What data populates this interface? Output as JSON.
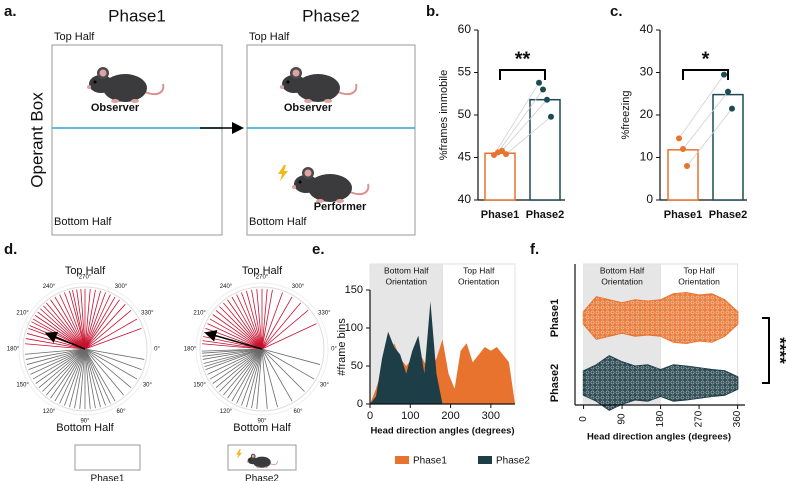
{
  "figure": {
    "panel_labels": [
      "a.",
      "b.",
      "c.",
      "d.",
      "e.",
      "f."
    ]
  },
  "diagram": {
    "phase_titles": [
      "Phase1",
      "Phase2"
    ],
    "box_label": "Operant Box",
    "top_half": "Top Half",
    "bottom_half": "Bottom Half",
    "observer": "Observer",
    "performer": "Performer"
  },
  "chart_data": [
    {
      "type": "bar",
      "ylabel": "%frames immobile",
      "categories": [
        "Phase1",
        "Phase2"
      ],
      "values": [
        45.5,
        51.8
      ],
      "colors": [
        "#e8732e",
        "#1d4a55"
      ],
      "points": [
        [
          45.3,
          45.6,
          45.8,
          45.4
        ],
        [
          53.8,
          53.0,
          51.8,
          49.8
        ]
      ],
      "ylim": [
        40,
        60
      ],
      "yticks": [
        40,
        45,
        50,
        55,
        60
      ],
      "significance": "**"
    },
    {
      "type": "bar",
      "ylabel": "%freezing",
      "categories": [
        "Phase1",
        "Phase2"
      ],
      "values": [
        11.8,
        24.8
      ],
      "colors": [
        "#e8732e",
        "#1d4a55"
      ],
      "points": [
        [
          14.5,
          12.0,
          8.0
        ],
        [
          29.5,
          25.5,
          21.5
        ]
      ],
      "ylim": [
        0,
        40
      ],
      "yticks": [
        0,
        10,
        20,
        30,
        40
      ],
      "significance": "*"
    },
    {
      "type": "polar",
      "title": "Top Half",
      "bottom_label": "Bottom Half",
      "name": "Phase1",
      "angle_ticks": [
        {
          "value": 0,
          "label": "0°"
        },
        {
          "value": 30,
          "label": "30°"
        },
        {
          "value": 60,
          "label": "60°"
        },
        {
          "value": 90,
          "label": "90°"
        },
        {
          "value": 120,
          "label": "120°"
        },
        {
          "value": 150,
          "label": "150°"
        },
        {
          "value": 180,
          "label": "180°"
        },
        {
          "value": 210,
          "label": "210°"
        },
        {
          "value": 240,
          "label": "240°"
        },
        {
          "value": 270,
          "label": "270°"
        },
        {
          "value": 300,
          "label": "300°"
        },
        {
          "value": 330,
          "label": "330°"
        }
      ],
      "series": [
        {
          "color": "#c8102e",
          "values": [
            185,
            190,
            195,
            200,
            203,
            207,
            210,
            214,
            218,
            222,
            226,
            230,
            235,
            240,
            245,
            250,
            255,
            258,
            262,
            266,
            270,
            275,
            280,
            285,
            290,
            295,
            300,
            305,
            312,
            320,
            330,
            340
          ]
        },
        {
          "color": "#6b6b6b",
          "values": [
            10,
            20,
            30,
            40,
            50,
            60,
            65,
            70,
            75,
            80,
            85,
            90,
            95,
            100,
            105,
            110,
            115,
            120,
            125,
            130,
            135,
            140,
            145,
            150,
            155,
            160,
            165,
            170,
            175
          ]
        }
      ],
      "arrow": {
        "angle": 202,
        "length": 0.65
      }
    },
    {
      "type": "polar",
      "title": "Top Half",
      "bottom_label": "Bottom Half",
      "name": "Phase2",
      "angle_ticks": [
        {
          "value": 0,
          "label": "0°"
        },
        {
          "value": 30,
          "label": "30°"
        },
        {
          "value": 60,
          "label": "60°"
        },
        {
          "value": 90,
          "label": "90°"
        },
        {
          "value": 120,
          "label": "120°"
        },
        {
          "value": 150,
          "label": "150°"
        },
        {
          "value": 180,
          "label": "180°"
        },
        {
          "value": 210,
          "label": "210°"
        },
        {
          "value": 240,
          "label": "240°"
        },
        {
          "value": 270,
          "label": "270°"
        },
        {
          "value": 300,
          "label": "300°"
        },
        {
          "value": 330,
          "label": "330°"
        }
      ],
      "series": [
        {
          "color": "#c8102e",
          "values": [
            185,
            188,
            192,
            196,
            200,
            205,
            210,
            215,
            220,
            225,
            230,
            235,
            240,
            245,
            250,
            255,
            260,
            265,
            270,
            275,
            280,
            290,
            300,
            310,
            320,
            335
          ]
        },
        {
          "color": "#6b6b6b",
          "values": [
            15,
            30,
            45,
            60,
            75,
            85,
            95,
            100,
            105,
            110,
            115,
            120,
            125,
            130,
            135,
            140,
            145,
            150,
            155,
            160,
            163,
            166,
            170,
            173,
            176,
            178
          ]
        }
      ],
      "arrow": {
        "angle": 196,
        "length": 0.92
      }
    },
    {
      "type": "area",
      "xlabel": "Head direction angles (degrees)",
      "ylabel": "#frame bins",
      "x": [
        0,
        15,
        30,
        45,
        60,
        75,
        90,
        105,
        120,
        135,
        150,
        165,
        180,
        195,
        210,
        225,
        240,
        255,
        270,
        285,
        300,
        315,
        330,
        345,
        360
      ],
      "series": [
        {
          "name": "Phase1",
          "color": "#e8732e",
          "values": [
            0,
            20,
            45,
            65,
            80,
            60,
            50,
            60,
            70,
            55,
            45,
            60,
            85,
            40,
            20,
            70,
            80,
            55,
            65,
            75,
            70,
            75,
            65,
            55,
            0
          ]
        },
        {
          "name": "Phase2",
          "color": "#1d3d47",
          "values": [
            0,
            10,
            60,
            95,
            75,
            65,
            40,
            70,
            90,
            40,
            135,
            40,
            0,
            0,
            0,
            0,
            0,
            0,
            0,
            0,
            0,
            0,
            0,
            0,
            0
          ]
        }
      ],
      "xlim": [
        0,
        360
      ],
      "xticks": [
        0,
        100,
        200,
        300
      ],
      "ylim": [
        0,
        150
      ],
      "yticks": [
        0,
        50,
        100,
        150
      ],
      "regions": [
        {
          "label_lines": [
            "Bottom Half",
            "Orientation"
          ],
          "range": [
            0,
            180
          ],
          "color": "#e6e6e6"
        },
        {
          "label_lines": [
            "Top Half",
            "Orientation"
          ],
          "range": [
            180,
            360
          ],
          "color": "#ffffff"
        }
      ]
    },
    {
      "type": "violin",
      "xlabel": "Head direction angles (degrees)",
      "categories": [
        "Phase1",
        "Phase2"
      ],
      "x": [
        0,
        30,
        60,
        90,
        120,
        150,
        180,
        210,
        240,
        270,
        300,
        330,
        360
      ],
      "series": [
        {
          "color": "#e8732e",
          "values": [
            0.1,
            0.35,
            0.3,
            0.25,
            0.3,
            0.28,
            0.3,
            0.4,
            0.42,
            0.38,
            0.4,
            0.3,
            0.1
          ]
        },
        {
          "color": "#1d3d47",
          "values": [
            0.2,
            0.3,
            0.45,
            0.35,
            0.28,
            0.3,
            0.22,
            0.3,
            0.28,
            0.25,
            0.22,
            0.2,
            0.1
          ]
        }
      ],
      "xlim": [
        -20,
        410
      ],
      "xticks": [
        0,
        90,
        180,
        270,
        360
      ],
      "significance": "****",
      "regions": [
        {
          "label_lines": [
            "Bottom Half",
            "Orientation"
          ],
          "range": [
            0,
            180
          ],
          "color": "#e6e6e6"
        },
        {
          "label_lines": [
            "Top Half",
            "Orientation"
          ],
          "range": [
            180,
            360
          ],
          "color": "#ffffff"
        }
      ]
    }
  ]
}
